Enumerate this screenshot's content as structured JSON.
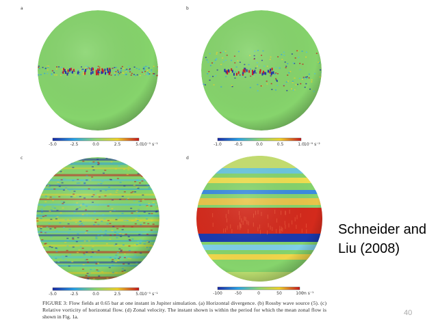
{
  "panels": [
    {
      "label": "a",
      "ticks": [
        "-5.0",
        "-2.5",
        "0.0",
        "2.5",
        "5.0"
      ],
      "unit": "10⁻⁵ s⁻¹"
    },
    {
      "label": "b",
      "ticks": [
        "-1.0",
        "-0.5",
        "0.0",
        "0.5",
        "1.0"
      ],
      "unit": "10⁻⁹ s⁻²"
    },
    {
      "label": "c",
      "ticks": [
        "-5.0",
        "-2.5",
        "0.0",
        "2.5",
        "5.0"
      ],
      "unit": "10⁻⁵ s⁻¹"
    },
    {
      "label": "d",
      "ticks": [
        "-100",
        "-50",
        "0",
        "50",
        "100"
      ],
      "unit": "m s⁻¹"
    }
  ],
  "caption": {
    "lines": [
      "FIGURE 3: Flow fields at 0.65 bar at one instant in Jupiter simulation. (a) Horizontal divergence. (b) Rossby wave source (5). (c)",
      "Relative vorticity of horizontal flow. (d) Zonal velocity. The instant shown is within the period for which the mean zonal flow is",
      "shown in Fig. 1a."
    ]
  },
  "citation": {
    "lines": [
      "Schneider and",
      "Liu (2008)"
    ]
  },
  "page_number": "40"
}
